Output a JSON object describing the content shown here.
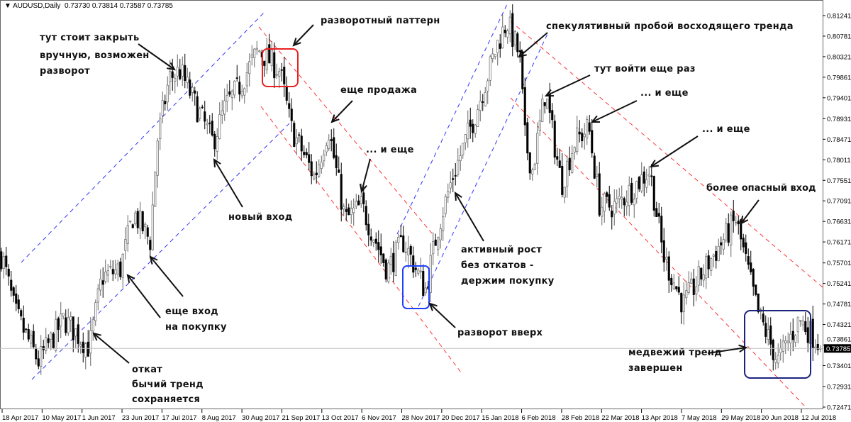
{
  "header": {
    "symbol": "AUDUSD,Daily",
    "ohlc": "0.73730 0.73814 0.73587 0.73785"
  },
  "colors": {
    "bull_candle": "#ffffff",
    "bear_candle": "#000000",
    "candle_outline": "#666666",
    "uptrend_channel": "#3333ff",
    "downtrend_channel": "#ff3333",
    "reversal_pattern_box": "#e82020",
    "reversal_up_box": "#2040ff",
    "trend_end_box": "#1a237e",
    "price_label_bg": "#000000"
  },
  "annotations": {
    "close_manually": [
      "тут стоит закрыть",
      "вручную, возможен",
      "разворот"
    ],
    "reversal_pattern": "разворотный паттерн",
    "speculative_breakout": "спекулятивный пробой восходящего тренда",
    "enter_again": "тут войти еще раз",
    "another_sell": "еще продажа",
    "and_more_1": "... и еще",
    "and_more_2": "... и еще",
    "and_more_3": "... и еще",
    "new_entry": "новый вход",
    "riskier_entry": "более опасный вход",
    "active_growth": [
      "активный рост",
      "без откатов -",
      "держим покупку"
    ],
    "reversal_up": "разворот вверх",
    "another_buy": [
      "еще вход",
      "на покупку"
    ],
    "pullback": [
      "откат",
      "бычий тренд",
      "сохраняется"
    ],
    "bear_trend_over": [
      "медвежий тренд",
      "завершен"
    ]
  },
  "chart_data": {
    "type": "candlestick",
    "symbol": "AUDUSD",
    "timeframe": "Daily",
    "last_price": 0.73785,
    "ylim": [
      0.72471,
      0.81241
    ],
    "y_ticks": [
      "0.81241",
      "0.80781",
      "0.80321",
      "0.79861",
      "0.79401",
      "0.78931",
      "0.78471",
      "0.78011",
      "0.77551",
      "0.77091",
      "0.76631",
      "0.76171",
      "0.75701",
      "0.75241",
      "0.74781",
      "0.74321",
      "0.73861",
      "0.73401",
      "0.72931",
      "0.72471"
    ],
    "x_ticks": [
      {
        "label": "18 Apr 2017",
        "date": "2017-04-18"
      },
      {
        "label": "10 May 2017",
        "date": "2017-05-10"
      },
      {
        "label": "1 Jun 2017",
        "date": "2017-06-01"
      },
      {
        "label": "23 Jun 2017",
        "date": "2017-06-23"
      },
      {
        "label": "17 Jul 2017",
        "date": "2017-07-17"
      },
      {
        "label": "8 Aug 2017",
        "date": "2017-08-08"
      },
      {
        "label": "30 Aug 2017",
        "date": "2017-08-30"
      },
      {
        "label": "21 Sep 2017",
        "date": "2017-09-21"
      },
      {
        "label": "13 Oct 2017",
        "date": "2017-10-13"
      },
      {
        "label": "6 Nov 2017",
        "date": "2017-11-06"
      },
      {
        "label": "28 Nov 2017",
        "date": "2017-11-28"
      },
      {
        "label": "20 Dec 2017",
        "date": "2017-12-20"
      },
      {
        "label": "15 Jan 2018",
        "date": "2018-01-15"
      },
      {
        "label": "6 Feb 2018",
        "date": "2018-02-06"
      },
      {
        "label": "28 Feb 2018",
        "date": "2018-02-28"
      },
      {
        "label": "22 Mar 2018",
        "date": "2018-03-22"
      },
      {
        "label": "13 Apr 2018",
        "date": "2018-04-13"
      },
      {
        "label": "7 May 2018",
        "date": "2018-05-07"
      },
      {
        "label": "29 May 2018",
        "date": "2018-05-29"
      },
      {
        "label": "20 Jun 2018",
        "date": "2018-06-20"
      },
      {
        "label": "12 Jul 2018",
        "date": "2018-07-12"
      }
    ],
    "approx_close_path": [
      [
        "2017-04-18",
        0.7587
      ],
      [
        "2017-04-25",
        0.746
      ],
      [
        "2017-05-08",
        0.7349
      ],
      [
        "2017-05-22",
        0.7444
      ],
      [
        "2017-06-05",
        0.738
      ],
      [
        "2017-06-12",
        0.7539
      ],
      [
        "2017-06-22",
        0.7555
      ],
      [
        "2017-06-30",
        0.7682
      ],
      [
        "2017-07-10",
        0.7619
      ],
      [
        "2017-07-14",
        0.7841
      ],
      [
        "2017-07-21",
        0.7984
      ],
      [
        "2017-07-27",
        0.8
      ],
      [
        "2017-08-03",
        0.7937
      ],
      [
        "2017-08-14",
        0.7841
      ],
      [
        "2017-08-21",
        0.7921
      ],
      [
        "2017-08-29",
        0.7968
      ],
      [
        "2017-09-08",
        0.8048
      ],
      [
        "2017-09-20",
        0.8
      ],
      [
        "2017-09-26",
        0.7873
      ],
      [
        "2017-10-09",
        0.7762
      ],
      [
        "2017-10-17",
        0.7873
      ],
      [
        "2017-10-27",
        0.7666
      ],
      [
        "2017-11-06",
        0.7698
      ],
      [
        "2017-11-20",
        0.7555
      ],
      [
        "2017-11-29",
        0.7619
      ],
      [
        "2017-12-11",
        0.7508
      ],
      [
        "2017-12-18",
        0.765
      ],
      [
        "2017-12-27",
        0.7762
      ],
      [
        "2018-01-11",
        0.7905
      ],
      [
        "2018-01-24",
        0.8064
      ],
      [
        "2018-01-29",
        0.8111
      ],
      [
        "2018-02-05",
        0.8032
      ],
      [
        "2018-02-08",
        0.7841
      ],
      [
        "2018-02-12",
        0.7778
      ],
      [
        "2018-02-19",
        0.7953
      ],
      [
        "2018-02-28",
        0.7746
      ],
      [
        "2018-03-07",
        0.7841
      ],
      [
        "2018-03-15",
        0.7873
      ],
      [
        "2018-03-21",
        0.7698
      ],
      [
        "2018-03-30",
        0.7698
      ],
      [
        "2018-04-10",
        0.7746
      ],
      [
        "2018-04-18",
        0.7778
      ],
      [
        "2018-04-26",
        0.7587
      ],
      [
        "2018-05-08",
        0.7476
      ],
      [
        "2018-05-22",
        0.7571
      ],
      [
        "2018-06-06",
        0.7666
      ],
      [
        "2018-06-18",
        0.746
      ],
      [
        "2018-06-29",
        0.7349
      ],
      [
        "2018-07-11",
        0.7444
      ],
      [
        "2018-07-24",
        0.7379
      ]
    ],
    "grid": false
  }
}
